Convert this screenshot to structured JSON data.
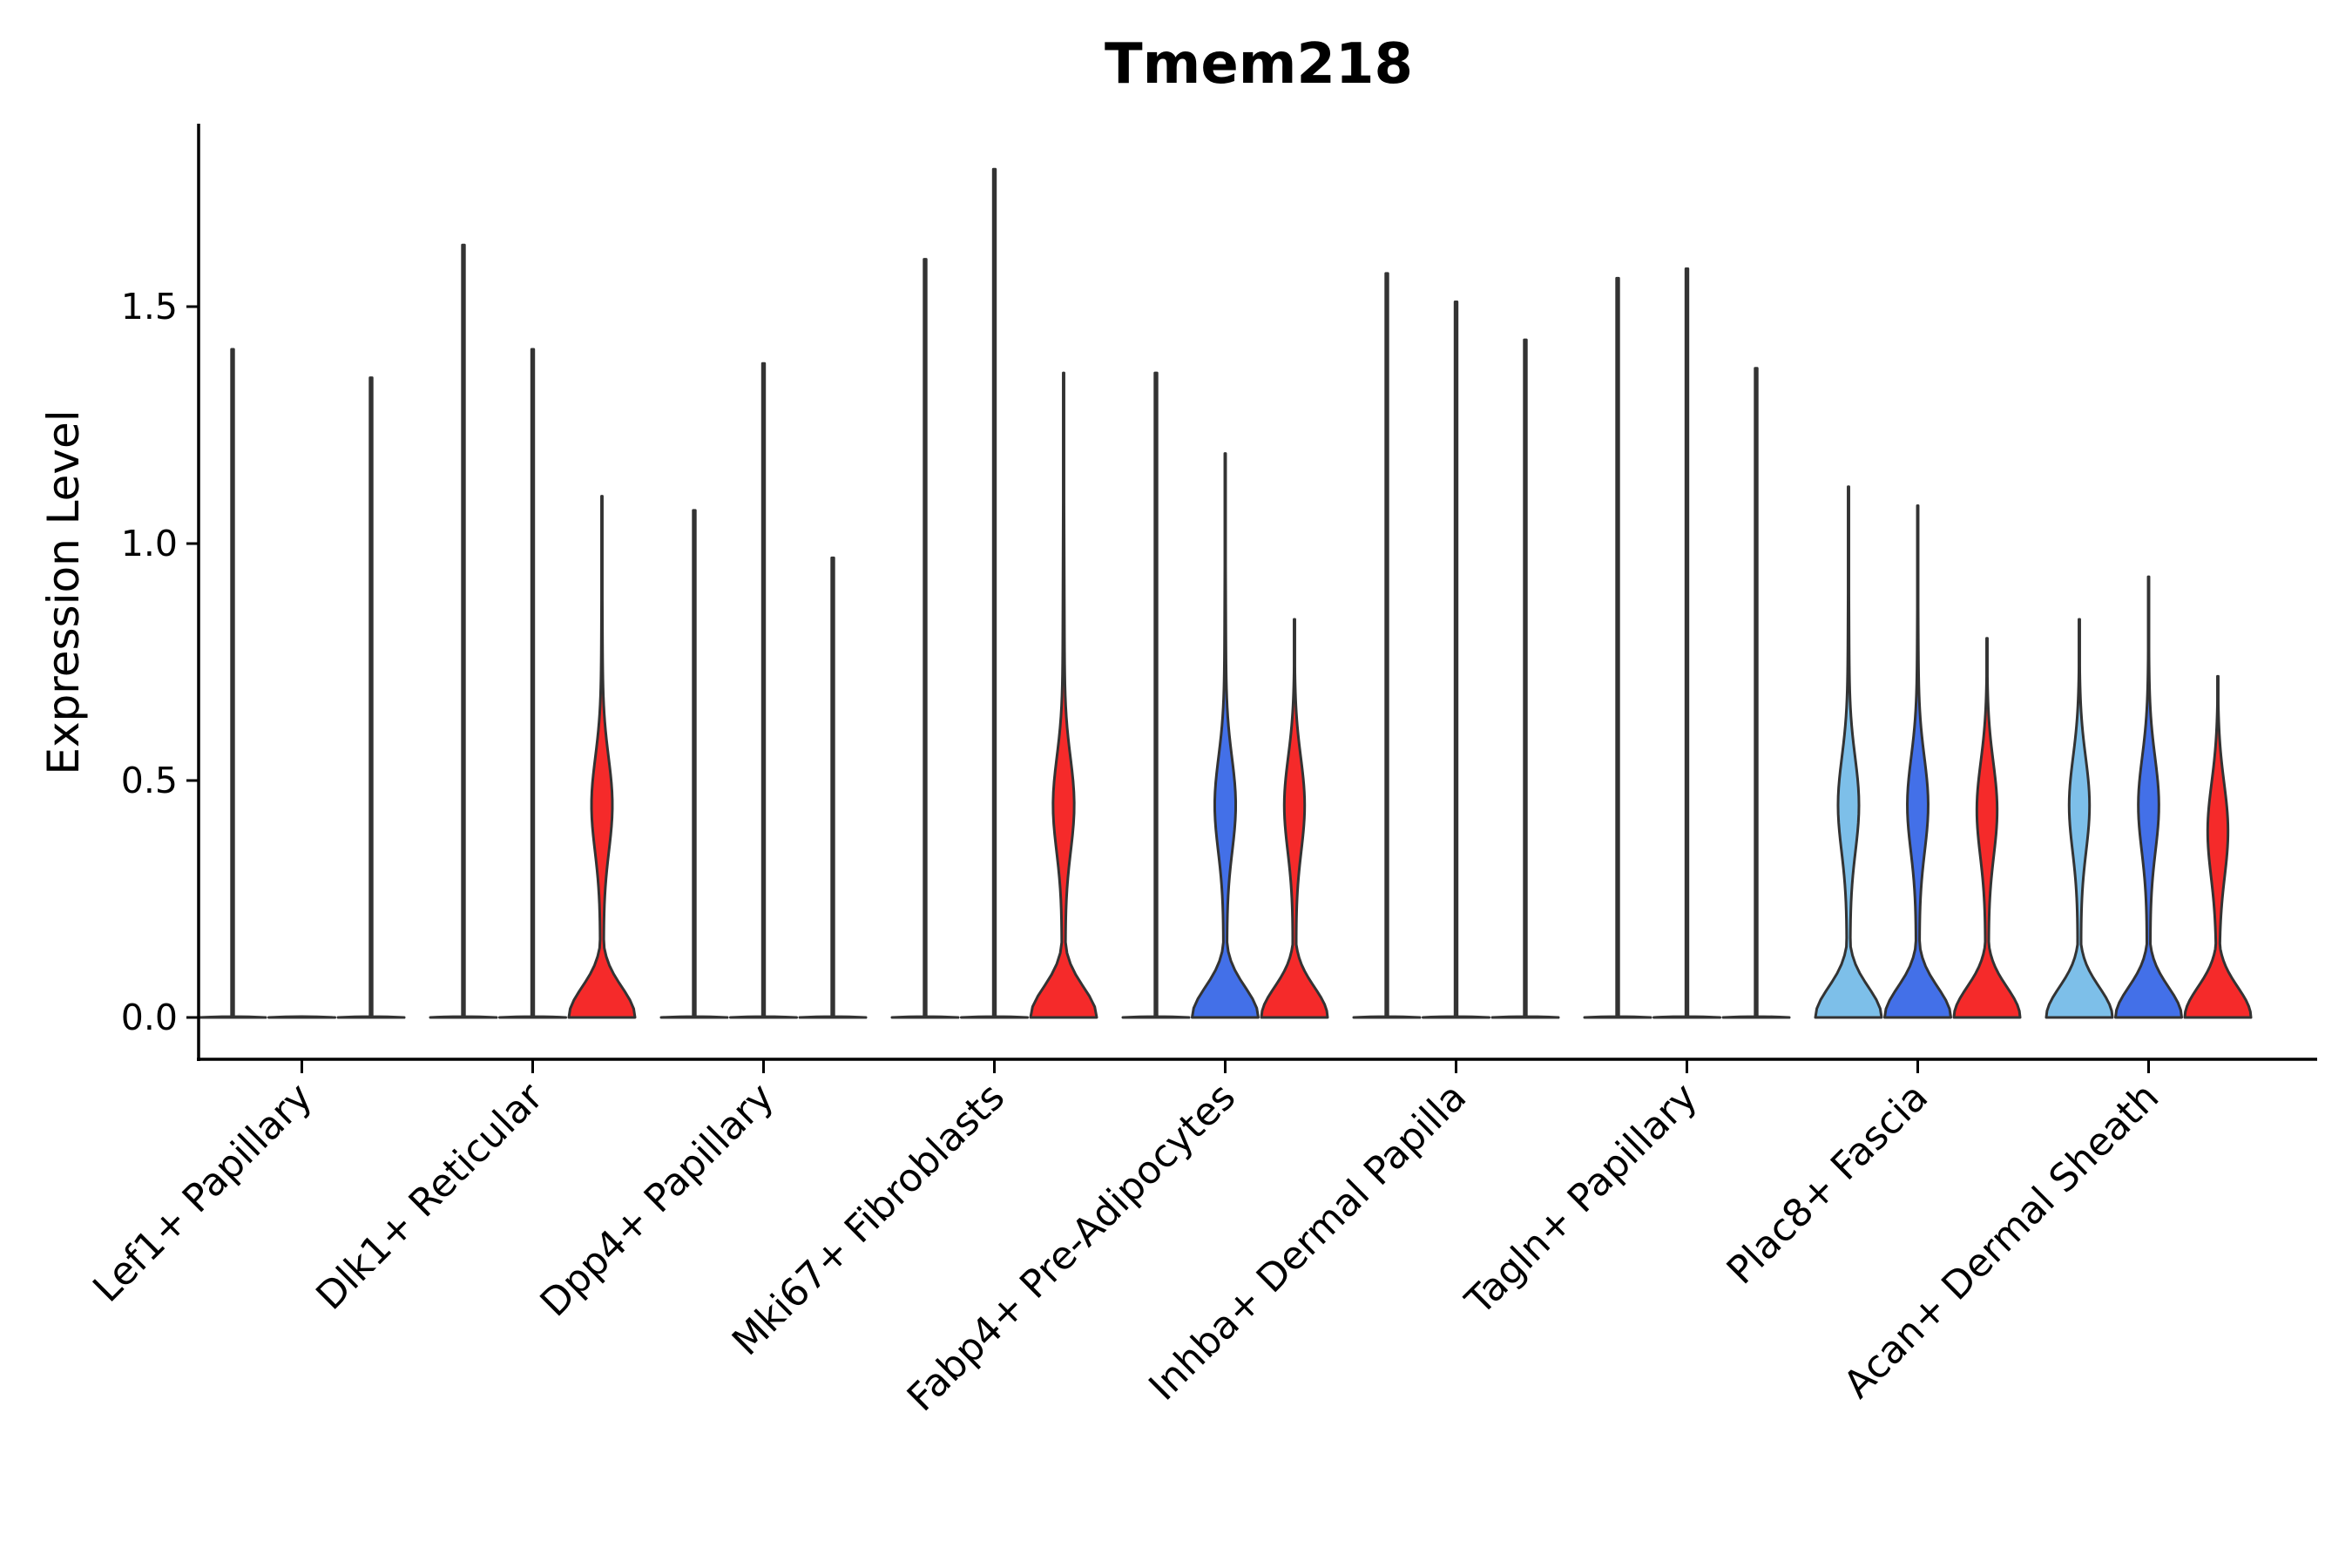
{
  "chart_data": {
    "type": "violin",
    "title": "Tmem218",
    "xlabel": "",
    "ylabel": "Expression Level",
    "ylim": [
      -0.09,
      1.88
    ],
    "yticks": [
      "0.0",
      "0.5",
      "1.0",
      "1.5"
    ],
    "ytick_values": [
      0.0,
      0.5,
      1.0,
      1.5
    ],
    "colors": {
      "group1": "#7dbfe9",
      "group2": "#4370e8",
      "group3": "#f52a2a"
    },
    "categories": [
      "Lef1+ Papillary",
      "Dlk1+ Reticular",
      "Dpp4+ Papillary",
      "Mki67+ Fibroblasts",
      "Fabp4+ Pre-Adipocytes",
      "Inhba+ Dermal Papilla",
      "Tagln+ Papillary",
      "Plac8+ Fascia",
      "Acan+ Dermal Sheath"
    ],
    "series": [
      {
        "name": "group1",
        "max_values": [
          1.41,
          1.63,
          1.07,
          1.6,
          1.36,
          1.57,
          1.56,
          1.12,
          0.84
        ],
        "shape": [
          "zero",
          "zero",
          "zero",
          "zero",
          "zero",
          "zero",
          "zero",
          "bimodal",
          "bimodal"
        ]
      },
      {
        "name": "group2",
        "max_values": [
          0.0,
          1.41,
          1.38,
          1.79,
          1.19,
          1.51,
          1.58,
          1.08,
          0.93
        ],
        "shape": [
          "zero",
          "zero",
          "zero",
          "zero",
          "bimodal",
          "zero",
          "zero",
          "bimodal",
          "bimodal"
        ]
      },
      {
        "name": "group3",
        "max_values": [
          1.35,
          1.1,
          0.97,
          1.36,
          0.84,
          1.43,
          1.37,
          0.8,
          0.72
        ],
        "shape": [
          "zero",
          "bimodal",
          "zero",
          "bimodal",
          "bimodal",
          "zero",
          "zero",
          "bimodal",
          "bimodal"
        ]
      }
    ]
  }
}
